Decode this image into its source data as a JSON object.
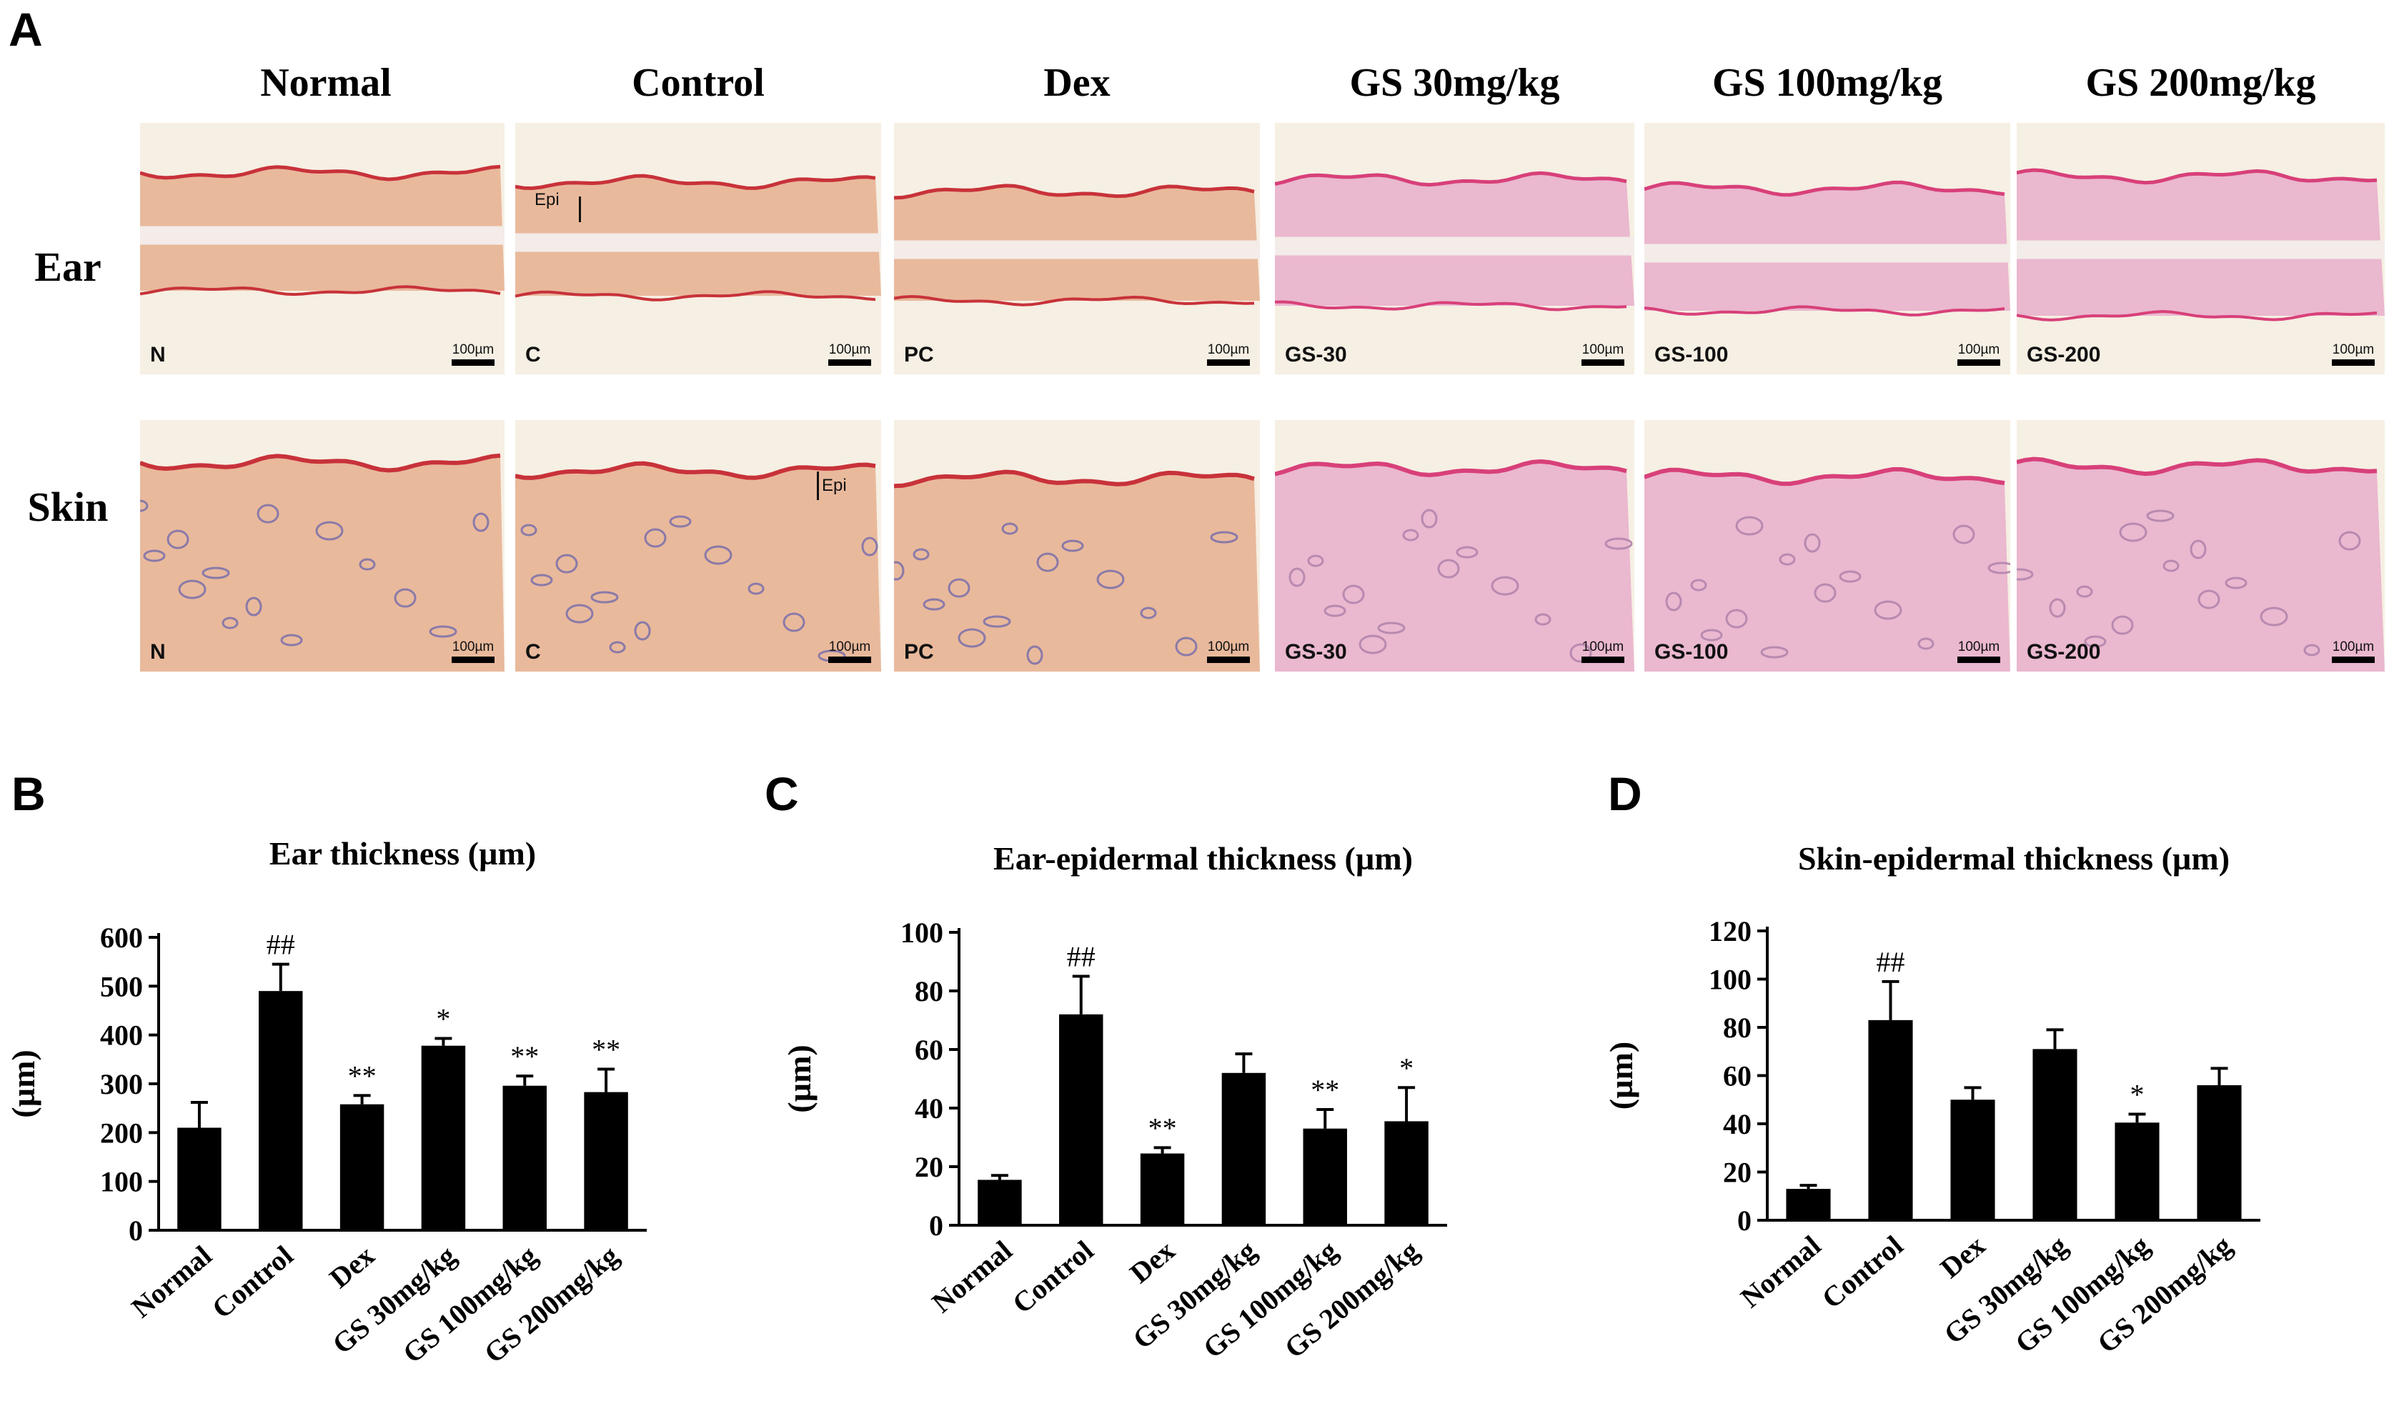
{
  "panel_a": {
    "letter": "A",
    "columns": [
      "Normal",
      "Control",
      "Dex",
      "GS 30mg/kg",
      "GS 100mg/kg",
      "GS 200mg/kg"
    ],
    "rows": [
      "Ear",
      "Skin"
    ],
    "ear_tags": [
      "N",
      "C",
      "PC",
      "GS-30",
      "GS-100",
      "GS-200"
    ],
    "skin_tags": [
      "N",
      "C",
      "PC",
      "GS-30",
      "GS-100",
      "GS-200"
    ],
    "scale_label": "100µm",
    "epi_label": "Epi",
    "stain_colors": {
      "photo_bg": "#f6efe3",
      "tissue_orange": "#e9b99c",
      "tissue_pink": "#eab8cf",
      "edge_red": "#c8323a",
      "edge_pink": "#d8407a"
    }
  },
  "chart_data": [
    {
      "type": "bar",
      "letter": "B",
      "title": "Ear thickness (µm)",
      "ylabel": "(µm)",
      "categories": [
        "Normal",
        "Control",
        "Dex",
        "GS 30mg/kg",
        "GS 100mg/kg",
        "GS 200mg/kg"
      ],
      "values": [
        210,
        490,
        258,
        378,
        296,
        283
      ],
      "errors": [
        52,
        55,
        18,
        15,
        20,
        47
      ],
      "annotations": [
        "",
        "##",
        "**",
        "*",
        "**",
        "**"
      ],
      "ylim": [
        0,
        600
      ],
      "yticks": [
        0,
        100,
        200,
        300,
        400,
        500,
        600
      ],
      "bar_color": "#000000"
    },
    {
      "type": "bar",
      "letter": "C",
      "title": "Ear-epidermal thickness (µm)",
      "ylabel": "(µm)",
      "categories": [
        "Normal",
        "Control",
        "Dex",
        "GS 30mg/kg",
        "GS 100mg/kg",
        "GS 200mg/kg"
      ],
      "values": [
        15.5,
        72,
        24.5,
        52,
        33,
        35.5
      ],
      "errors": [
        1.5,
        13,
        2,
        6.5,
        6.5,
        11.5
      ],
      "annotations": [
        "",
        "##",
        "**",
        "",
        "**",
        "*"
      ],
      "ylim": [
        0,
        100
      ],
      "yticks": [
        0,
        20,
        40,
        60,
        80,
        100
      ],
      "bar_color": "#000000"
    },
    {
      "type": "bar",
      "letter": "D",
      "title": "Skin-epidermal thickness (µm)",
      "ylabel": "(µm)",
      "categories": [
        "Normal",
        "Control",
        "Dex",
        "GS 30mg/kg",
        "GS 100mg/kg",
        "GS 200mg/kg"
      ],
      "values": [
        13,
        83,
        50,
        71,
        40.5,
        56
      ],
      "errors": [
        1.5,
        16,
        5,
        8,
        3.5,
        7
      ],
      "annotations": [
        "",
        "##",
        "",
        "",
        "*",
        ""
      ],
      "ylim": [
        0,
        120
      ],
      "yticks": [
        0,
        20,
        40,
        60,
        80,
        100,
        120
      ],
      "bar_color": "#000000"
    }
  ]
}
